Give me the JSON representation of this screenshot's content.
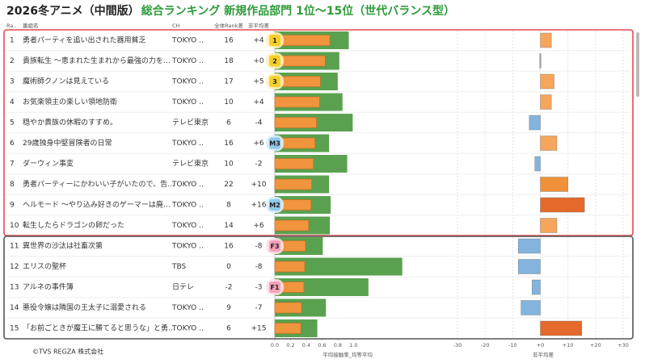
{
  "header": {
    "title": "2026冬アニメ（中間版）",
    "subtitle": "総合ランキング 新規作品部門 1位～15位（世代バランス型）"
  },
  "table": {
    "columns": [
      "Ra..",
      "番組名",
      "CH",
      "全体Rank差",
      "非平均差"
    ],
    "rows": [
      {
        "rank": 1,
        "name": "勇者パーティを追い出された器用貧乏",
        "ch": "TOKYO ..",
        "rank_diff": 16,
        "badge": "1"
      },
      {
        "rank": 2,
        "name": "貴族転生 ～恵まれた生まれから最強の力を…",
        "ch": "TOKYO ..",
        "rank_diff": 18,
        "badge": "2"
      },
      {
        "rank": 3,
        "name": "魔術師クノンは見えている",
        "ch": "TOKYO ..",
        "rank_diff": 17,
        "badge": "3"
      },
      {
        "rank": 4,
        "name": "お気楽領主の楽しい領地防衛",
        "ch": "TOKYO ..",
        "rank_diff": 10
      },
      {
        "rank": 5,
        "name": "穏やか貴族の休暇のすすめ。",
        "ch": "テレビ東京",
        "rank_diff": 6
      },
      {
        "rank": 6,
        "name": "29歳独身中堅冒険者の日常",
        "ch": "TOKYO ..",
        "rank_diff": 16,
        "badge": "M3"
      },
      {
        "rank": 7,
        "name": "ダーウィン事変",
        "ch": "テレビ東京",
        "rank_diff": 10
      },
      {
        "rank": 8,
        "name": "勇者パーティーにかわいい子がいたので、告…",
        "ch": "TOKYO ..",
        "rank_diff": 22
      },
      {
        "rank": 9,
        "name": "ヘルモード ～やり込み好きのゲーマーは廃…",
        "ch": "TOKYO ..",
        "rank_diff": 8,
        "badge": "M2"
      },
      {
        "rank": 10,
        "name": "転生したらドラゴンの卵だった",
        "ch": "TOKYO ..",
        "rank_diff": 14
      },
      {
        "rank": 11,
        "name": "異世界の沙汰は社畜次第",
        "ch": "TOKYO ..",
        "rank_diff": 16,
        "badge": "F3"
      },
      {
        "rank": 12,
        "name": "エリスの聖杯",
        "ch": "TBS",
        "rank_diff": 0
      },
      {
        "rank": 13,
        "name": "アルネの事件簿",
        "ch": "日テレ",
        "rank_diff": -2,
        "badge": "F1"
      },
      {
        "rank": 14,
        "name": "悪役令嬢は隣国の王太子に溺愛される",
        "ch": "TOKYO ..",
        "rank_diff": 9
      },
      {
        "rank": 15,
        "name": "「お前ごときが魔王に勝てると思うな」と勇…",
        "ch": "TOKYO ..",
        "rank_diff": 6
      }
    ]
  },
  "chart_data": [
    {
      "type": "bar",
      "x_label": "平均接触率_均等平均",
      "xlim": [
        0,
        2.25
      ],
      "xticks": [
        {
          "value": 0,
          "label": "0.0"
        },
        0.2,
        0.4,
        0.6,
        0.8,
        {
          "value": 1,
          "label": "1.0"
        }
      ],
      "series": [
        {
          "color": "#5aa14f",
          "values": [
            0.94,
            0.82,
            0.8,
            0.86,
            0.99,
            0.69,
            0.92,
            0.69,
            0.71,
            0.7,
            0.61,
            1.62,
            1.19,
            0.65,
            0.54
          ]
        },
        {
          "color": "#f0943e",
          "values": [
            0.7,
            0.64,
            0.58,
            0.57,
            0.53,
            0.51,
            0.49,
            0.47,
            0.46,
            0.43,
            0.39,
            0.38,
            0.37,
            0.34,
            0.33
          ]
        }
      ]
    },
    {
      "type": "bar",
      "x_label": "非平均差",
      "xlim": [
        -30,
        30
      ],
      "xticks": [
        -30,
        -20,
        -10,
        {
          "value": 0,
          "label": "+0"
        },
        {
          "value": 10,
          "label": "+10"
        },
        {
          "value": 20,
          "label": "+20"
        },
        {
          "value": 30,
          "label": "+30"
        }
      ],
      "values": [
        4,
        0,
        5,
        4,
        -4,
        6,
        -2,
        10,
        16,
        6,
        -8,
        -8,
        -3,
        -7,
        15
      ],
      "value_labels": [
        "+4",
        "+0",
        "+5",
        "+4",
        "-4",
        "+6",
        "-2",
        "+10",
        "+16",
        "+6",
        "-8",
        "-8",
        "-3",
        "-7",
        "+15"
      ],
      "colors": [
        "#f5a55c",
        "#9aa0a6",
        "#f5a55c",
        "#f5a55c",
        "#82b4de",
        "#f5a55c",
        "#82b4de",
        "#f0913a",
        "#e4692a",
        "#f5a55c",
        "#82b4de",
        "#82b4de",
        "#82b4de",
        "#82b4de",
        "#e4692a"
      ]
    }
  ],
  "footer": "©TVS REGZA 株式会社"
}
